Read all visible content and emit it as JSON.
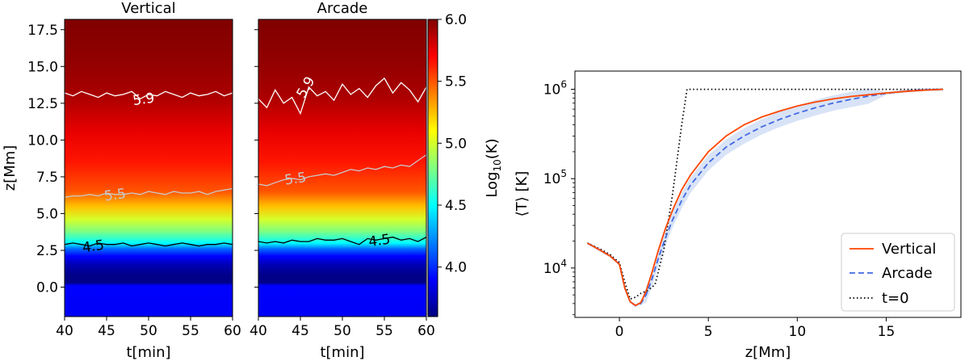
{
  "chart_data": [
    {
      "type": "heatmap",
      "title": "Vertical",
      "xlabel": "t[min]",
      "ylabel": "z[Mm]",
      "xlim": [
        40,
        60
      ],
      "ylim": [
        -2.0,
        18.2
      ],
      "xticks": [
        40,
        45,
        50,
        55,
        60
      ],
      "xtick_labels": [
        "40",
        "45",
        "50",
        "55",
        "60"
      ],
      "yticks": [
        0.0,
        2.5,
        5.0,
        7.5,
        10.0,
        12.5,
        15.0,
        17.5
      ],
      "ytick_labels": [
        "0.0",
        "2.5",
        "5.0",
        "7.5",
        "10.0",
        "12.5",
        "15.0",
        "17.5"
      ],
      "contours": [
        {
          "label": "5.9",
          "level": 5.9,
          "color": "#ffffff",
          "z": [
            13.2,
            13.0,
            13.3,
            13.1,
            12.9,
            13.2,
            13.0,
            13.1,
            13.3,
            12.8,
            13.1,
            13.0,
            13.3,
            13.1,
            12.9,
            13.2,
            13.0,
            13.1,
            13.3,
            13.0,
            13.2
          ]
        },
        {
          "label": "5.5",
          "level": 5.5,
          "color": "#c8c8c8",
          "z": [
            6.1,
            6.2,
            6.2,
            6.3,
            6.2,
            6.4,
            6.3,
            6.3,
            6.4,
            6.3,
            6.5,
            6.4,
            6.3,
            6.5,
            6.4,
            6.4,
            6.5,
            6.3,
            6.5,
            6.6,
            6.7
          ]
        },
        {
          "label": "4.5",
          "level": 4.5,
          "color": "#000000",
          "z": [
            2.9,
            3.0,
            2.9,
            2.8,
            3.0,
            2.9,
            2.9,
            3.0,
            2.8,
            2.9,
            3.0,
            2.9,
            2.8,
            2.9,
            3.0,
            2.9,
            2.8,
            2.9,
            2.9,
            3.0,
            2.9
          ]
        }
      ]
    },
    {
      "type": "heatmap",
      "title": "Arcade",
      "xlabel": "t[min]",
      "ylabel": "",
      "xlim": [
        40,
        60
      ],
      "ylim": [
        -2.0,
        18.2
      ],
      "xticks": [
        40,
        45,
        50,
        55,
        60
      ],
      "xtick_labels": [
        "40",
        "45",
        "50",
        "55",
        "60"
      ],
      "contours": [
        {
          "label": "5.9",
          "level": 5.9,
          "color": "#ffffff",
          "z": [
            12.8,
            12.2,
            13.4,
            12.5,
            12.9,
            11.8,
            13.6,
            13.0,
            13.3,
            12.7,
            13.8,
            13.1,
            13.5,
            12.9,
            13.7,
            14.2,
            13.2,
            13.9,
            13.4,
            12.6,
            13.6
          ]
        },
        {
          "label": "5.5",
          "level": 5.5,
          "color": "#c8c8c8",
          "z": [
            7.0,
            6.9,
            7.1,
            7.3,
            7.4,
            7.3,
            7.5,
            7.6,
            7.7,
            7.6,
            7.8,
            8.0,
            7.9,
            8.1,
            8.0,
            8.2,
            8.1,
            8.3,
            8.2,
            8.6,
            9.0
          ]
        },
        {
          "label": "4.5",
          "level": 4.5,
          "color": "#000000",
          "z": [
            3.1,
            3.0,
            3.1,
            3.0,
            3.2,
            3.1,
            3.1,
            3.3,
            3.2,
            3.2,
            3.3,
            3.1,
            2.9,
            3.3,
            3.2,
            3.3,
            3.4,
            3.2,
            3.3,
            3.1,
            3.4
          ]
        }
      ]
    },
    {
      "type": "colorbar",
      "label": "Log$_{10}$(K)",
      "label_text": "Log",
      "label_sub": "10",
      "label_tail": "(K)",
      "range": [
        3.6,
        6.0
      ],
      "ticks": [
        4.0,
        4.5,
        5.0,
        5.5,
        6.0
      ],
      "tick_labels": [
        "4.0",
        "4.5",
        "5.0",
        "5.5",
        "6.0"
      ]
    },
    {
      "type": "line",
      "xlabel": "z[Mm]",
      "ylabel": "⟨T⟩ [K]",
      "yscale": "log",
      "xlim": [
        -2.5,
        19.2
      ],
      "ylim": [
        2800,
        1600000
      ],
      "xticks": [
        0,
        5,
        10,
        15
      ],
      "xtick_labels": [
        "0",
        "5",
        "10",
        "15"
      ],
      "yticks": [
        10000,
        100000,
        1000000
      ],
      "ytick_labels": [
        {
          "base": "10",
          "exp": "4"
        },
        {
          "base": "10",
          "exp": "5"
        },
        {
          "base": "10",
          "exp": "6"
        }
      ],
      "legend_position": "lower-right",
      "series": [
        {
          "name": "Vertical",
          "color": "#ff4500",
          "style": "solid",
          "x": [
            -1.8,
            -1.0,
            -0.5,
            0.0,
            0.3,
            0.6,
            0.9,
            1.2,
            1.5,
            1.8,
            2.2,
            2.6,
            3.0,
            3.5,
            4.0,
            5.0,
            6.0,
            7.0,
            8.0,
            9.0,
            10.0,
            11.0,
            12.0,
            13.0,
            14.0,
            15.0,
            16.0,
            17.0,
            18.2
          ],
          "y": [
            19000,
            15500,
            13500,
            11000,
            6000,
            4200,
            3800,
            4100,
            5500,
            8500,
            16000,
            28000,
            45000,
            75000,
            110000,
            200000,
            300000,
            400000,
            490000,
            570000,
            650000,
            720000,
            780000,
            830000,
            870000,
            910000,
            945000,
            975000,
            1000000
          ]
        },
        {
          "name": "Arcade",
          "color": "#4169e1",
          "style": "dashed",
          "x": [
            -1.8,
            -1.0,
            -0.5,
            0.0,
            0.3,
            0.6,
            0.9,
            1.2,
            1.5,
            1.8,
            2.2,
            2.6,
            3.0,
            3.5,
            4.0,
            5.0,
            6.0,
            7.0,
            8.0,
            9.0,
            10.0,
            11.0,
            12.0,
            13.0,
            14.0,
            15.0,
            16.0,
            17.0,
            18.2
          ],
          "y": [
            19000,
            15500,
            13500,
            11000,
            6000,
            4200,
            3800,
            4000,
            5000,
            7200,
            13000,
            22000,
            35000,
            57000,
            85000,
            150000,
            225000,
            300000,
            380000,
            460000,
            540000,
            620000,
            700000,
            770000,
            840000,
            900000,
            950000,
            985000,
            1000000
          ]
        },
        {
          "name": "t=0",
          "color": "#000000",
          "style": "dotted",
          "x": [
            -1.8,
            -1.0,
            -0.5,
            0.0,
            0.3,
            0.6,
            0.9,
            1.2,
            1.6,
            2.0,
            2.5,
            3.0,
            3.5,
            3.8,
            5.0,
            10.0,
            15.0,
            18.2
          ],
          "y": [
            19000,
            16000,
            14000,
            11500,
            7000,
            4500,
            4700,
            5200,
            5600,
            6500,
            16000,
            70000,
            400000,
            1000000,
            1000000,
            1000000,
            1000000,
            1000000
          ]
        }
      ]
    }
  ]
}
